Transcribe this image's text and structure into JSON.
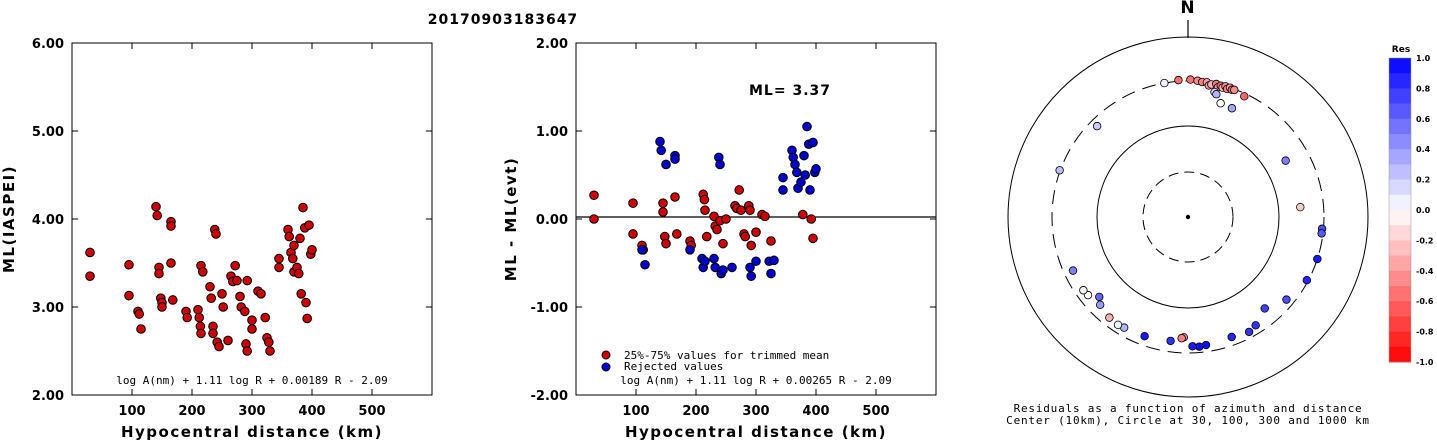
{
  "title": "20170903183647",
  "chart_data": [
    {
      "type": "scatter",
      "ylabel": "ML(IASPEI)",
      "xlabel": "Hypocentral distance (km)",
      "xlim": [
        0,
        600
      ],
      "ylim": [
        2.0,
        6.0
      ],
      "xticks": [
        "100",
        "200",
        "300",
        "400",
        "500"
      ],
      "yticks": [
        "2.00",
        "3.00",
        "4.00",
        "5.00",
        "6.00"
      ],
      "formula": "log A(nm) + 1.11 log R + 0.00189 R - 2.09",
      "points_color": "#cc0000",
      "points": [
        [
          30,
          3.62
        ],
        [
          30,
          3.35
        ],
        [
          95,
          3.48
        ],
        [
          95,
          3.13
        ],
        [
          110,
          2.95
        ],
        [
          112,
          2.92
        ],
        [
          115,
          2.75
        ],
        [
          140,
          4.14
        ],
        [
          142,
          4.04
        ],
        [
          145,
          3.45
        ],
        [
          145,
          3.38
        ],
        [
          148,
          3.1
        ],
        [
          150,
          3.05
        ],
        [
          150,
          3.0
        ],
        [
          165,
          3.97
        ],
        [
          165,
          3.92
        ],
        [
          165,
          3.5
        ],
        [
          168,
          3.08
        ],
        [
          190,
          2.95
        ],
        [
          192,
          2.88
        ],
        [
          210,
          2.97
        ],
        [
          212,
          2.88
        ],
        [
          214,
          2.78
        ],
        [
          215,
          2.7
        ],
        [
          215,
          3.47
        ],
        [
          218,
          3.4
        ],
        [
          230,
          3.23
        ],
        [
          232,
          3.1
        ],
        [
          235,
          2.78
        ],
        [
          235,
          2.7
        ],
        [
          238,
          3.88
        ],
        [
          240,
          3.83
        ],
        [
          242,
          2.6
        ],
        [
          245,
          2.55
        ],
        [
          250,
          3.15
        ],
        [
          252,
          3.0
        ],
        [
          260,
          2.62
        ],
        [
          265,
          3.35
        ],
        [
          268,
          3.29
        ],
        [
          272,
          3.47
        ],
        [
          275,
          3.3
        ],
        [
          280,
          3.12
        ],
        [
          282,
          3.0
        ],
        [
          288,
          2.95
        ],
        [
          290,
          2.58
        ],
        [
          292,
          2.5
        ],
        [
          292,
          3.3
        ],
        [
          300,
          2.85
        ],
        [
          300,
          2.75
        ],
        [
          310,
          3.18
        ],
        [
          315,
          3.15
        ],
        [
          322,
          2.88
        ],
        [
          325,
          2.65
        ],
        [
          328,
          2.6
        ],
        [
          330,
          2.5
        ],
        [
          345,
          3.55
        ],
        [
          345,
          3.45
        ],
        [
          360,
          3.88
        ],
        [
          362,
          3.8
        ],
        [
          365,
          3.62
        ],
        [
          368,
          3.55
        ],
        [
          370,
          3.7
        ],
        [
          370,
          3.4
        ],
        [
          375,
          3.45
        ],
        [
          378,
          3.38
        ],
        [
          380,
          3.78
        ],
        [
          382,
          3.15
        ],
        [
          385,
          4.13
        ],
        [
          388,
          3.9
        ],
        [
          390,
          3.05
        ],
        [
          392,
          2.87
        ],
        [
          395,
          3.93
        ],
        [
          398,
          3.6
        ],
        [
          400,
          3.65
        ]
      ]
    },
    {
      "type": "scatter",
      "ylabel": "ML - ML(evt)",
      "xlabel": "Hypocentral distance (km)",
      "xlim": [
        0,
        600
      ],
      "ylim": [
        -2.0,
        2.0
      ],
      "xticks": [
        "100",
        "200",
        "300",
        "400",
        "500"
      ],
      "yticks": [
        "-2.00",
        "-1.00",
        "0.00",
        "1.00",
        "2.00"
      ],
      "annotation": "ML= 3.37",
      "formula": "log A(nm) + 1.11 log R + 0.00265 R - 2.09",
      "legend": [
        {
          "label": "25%-75% values for trimmed mean",
          "color": "#cc0000"
        },
        {
          "label": "Rejected values",
          "color": "#0000cc"
        }
      ],
      "series": [
        {
          "name": "25%-75% values for trimmed mean",
          "color": "#cc0000",
          "points": [
            [
              30,
              0.27
            ],
            [
              30,
              0.0
            ],
            [
              95,
              0.18
            ],
            [
              95,
              -0.17
            ],
            [
              110,
              -0.3
            ],
            [
              112,
              -0.35
            ],
            [
              145,
              0.18
            ],
            [
              145,
              0.08
            ],
            [
              148,
              -0.2
            ],
            [
              150,
              -0.28
            ],
            [
              165,
              0.25
            ],
            [
              168,
              -0.17
            ],
            [
              190,
              -0.25
            ],
            [
              192,
              -0.3
            ],
            [
              212,
              0.28
            ],
            [
              214,
              0.22
            ],
            [
              215,
              0.1
            ],
            [
              218,
              -0.2
            ],
            [
              230,
              0.03
            ],
            [
              232,
              -0.08
            ],
            [
              235,
              -0.12
            ],
            [
              240,
              -0.02
            ],
            [
              245,
              -0.28
            ],
            [
              250,
              0.0
            ],
            [
              265,
              0.15
            ],
            [
              268,
              0.12
            ],
            [
              272,
              0.33
            ],
            [
              275,
              0.1
            ],
            [
              280,
              -0.17
            ],
            [
              282,
              -0.2
            ],
            [
              288,
              0.15
            ],
            [
              290,
              0.1
            ],
            [
              292,
              -0.3
            ],
            [
              300,
              -0.15
            ],
            [
              310,
              0.05
            ],
            [
              315,
              0.03
            ],
            [
              325,
              -0.25
            ],
            [
              378,
              0.05
            ],
            [
              392,
              0.0
            ],
            [
              395,
              -0.22
            ]
          ]
        },
        {
          "name": "Rejected values",
          "color": "#0000cc",
          "points": [
            [
              110,
              -0.35
            ],
            [
              115,
              -0.52
            ],
            [
              140,
              0.88
            ],
            [
              142,
              0.78
            ],
            [
              150,
              0.62
            ],
            [
              165,
              0.72
            ],
            [
              165,
              0.68
            ],
            [
              190,
              -0.35
            ],
            [
              210,
              -0.45
            ],
            [
              212,
              -0.55
            ],
            [
              215,
              -0.48
            ],
            [
              230,
              -0.45
            ],
            [
              232,
              -0.55
            ],
            [
              238,
              0.7
            ],
            [
              240,
              0.62
            ],
            [
              242,
              -0.62
            ],
            [
              245,
              -0.58
            ],
            [
              260,
              -0.55
            ],
            [
              290,
              -0.55
            ],
            [
              292,
              -0.65
            ],
            [
              300,
              -0.48
            ],
            [
              322,
              -0.48
            ],
            [
              325,
              -0.62
            ],
            [
              330,
              -0.47
            ],
            [
              345,
              0.47
            ],
            [
              345,
              0.33
            ],
            [
              360,
              0.78
            ],
            [
              362,
              0.7
            ],
            [
              365,
              0.62
            ],
            [
              368,
              0.53
            ],
            [
              370,
              0.35
            ],
            [
              375,
              0.42
            ],
            [
              380,
              0.72
            ],
            [
              382,
              0.5
            ],
            [
              385,
              1.05
            ],
            [
              388,
              0.85
            ],
            [
              390,
              0.33
            ],
            [
              395,
              0.87
            ],
            [
              398,
              0.53
            ],
            [
              400,
              0.57
            ]
          ]
        }
      ]
    },
    {
      "type": "polar-scatter",
      "north_label": "N",
      "caption_line1": "Residuals as a function of azimuth and distance",
      "caption_line2": "Center (10km), Circle at 30, 100, 300 and 1000 km",
      "colorbar_title": "Res",
      "colorbar_ticks": [
        "1.0",
        "0.8",
        "0.6",
        "0.4",
        "0.2",
        "0.0",
        "-0.2",
        "-0.4",
        "-0.6",
        "-0.8",
        "-1.0"
      ],
      "colorbar_range": [
        -1.0,
        1.0
      ],
      "points_az_dist_res": [
        [
          350,
          300,
          0.05
        ],
        [
          356,
          310,
          -0.55
        ],
        [
          1,
          312,
          -0.55
        ],
        [
          4,
          305,
          -0.45
        ],
        [
          6,
          298,
          -0.5
        ],
        [
          8,
          300,
          -0.35
        ],
        [
          9,
          280,
          -0.4
        ],
        [
          10,
          290,
          -0.3
        ],
        [
          12,
          300,
          -0.5
        ],
        [
          13,
          280,
          -0.4
        ],
        [
          14,
          295,
          -0.6
        ],
        [
          15,
          285,
          -0.3
        ],
        [
          16,
          300,
          -0.45
        ],
        [
          17,
          285,
          -0.5
        ],
        [
          18,
          300,
          -0.35
        ],
        [
          19,
          290,
          -0.55
        ],
        [
          20,
          295,
          -0.45
        ],
        [
          25,
          280,
          -0.6
        ],
        [
          12,
          245,
          0.15
        ],
        [
          13,
          235,
          0.3
        ],
        [
          16,
          195,
          0.0
        ],
        [
          22,
          190,
          0.35
        ],
        [
          315,
          250,
          0.2
        ],
        [
          290,
          305,
          0.25
        ],
        [
          85,
          170,
          -0.2
        ],
        [
          60,
          170,
          0.5
        ],
        [
          95,
          290,
          0.7
        ],
        [
          97,
          290,
          0.65
        ],
        [
          108,
          300,
          0.9
        ],
        [
          118,
          290,
          0.85
        ],
        [
          130,
          250,
          0.7
        ],
        [
          140,
          200,
          0.75
        ],
        [
          148,
          245,
          0.8
        ],
        [
          152,
          260,
          0.8
        ],
        [
          160,
          245,
          0.85
        ],
        [
          172,
          255,
          0.95
        ],
        [
          175,
          260,
          0.95
        ],
        [
          178,
          255,
          0.9
        ],
        [
          182,
          205,
          -0.5
        ],
        [
          183,
          210,
          -0.5
        ],
        [
          188,
          230,
          0.8
        ],
        [
          200,
          240,
          0.9
        ],
        [
          210,
          245,
          0.3
        ],
        [
          213,
          250,
          0.05
        ],
        [
          218,
          245,
          -0.3
        ],
        [
          225,
          225,
          0.4
        ],
        [
          228,
          200,
          0.6
        ],
        [
          232,
          240,
          0.0
        ],
        [
          235,
          245,
          0.05
        ],
        [
          245,
          240,
          0.5
        ]
      ]
    }
  ]
}
